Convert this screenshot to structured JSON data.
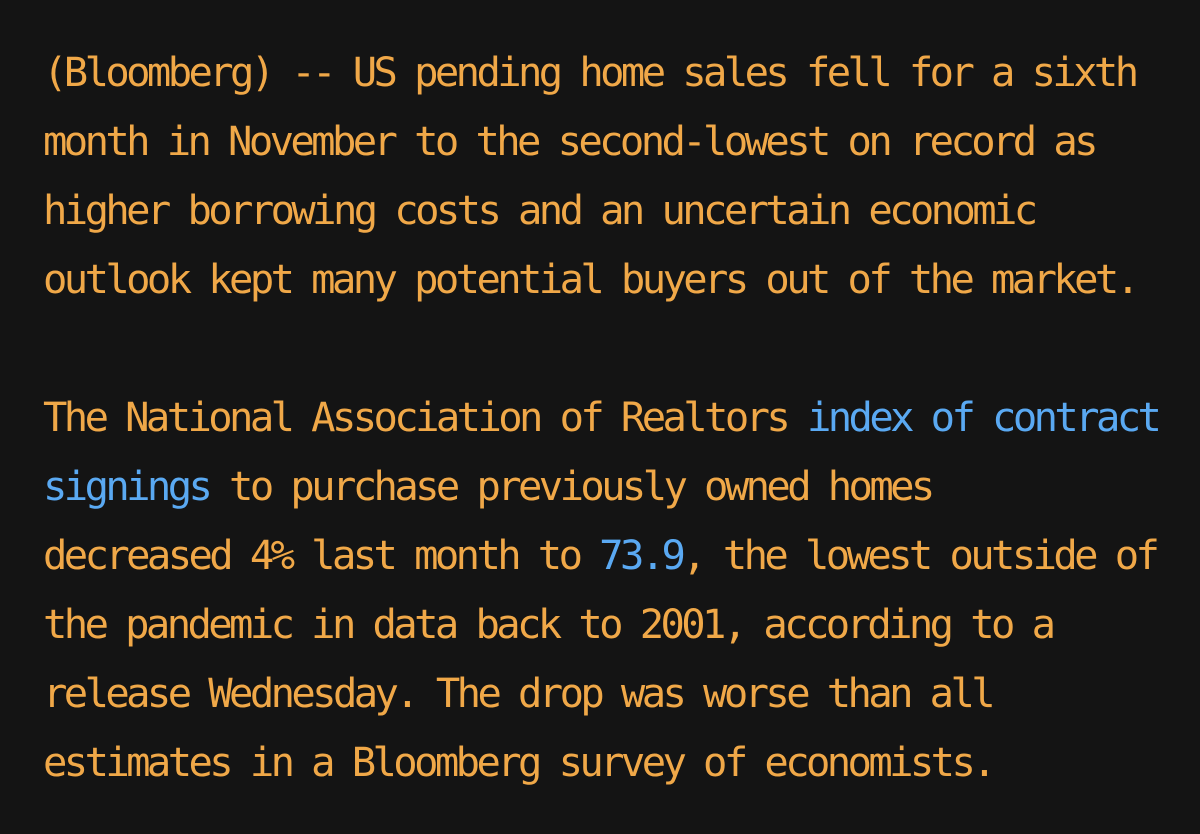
{
  "article": {
    "paragraph1": {
      "lines": [
        "(Bloomberg) -- US pending home sales fell for a sixth",
        "month in November to the second-lowest on record as",
        "higher borrowing costs and an uncertain economic",
        "outlook kept many potential buyers out of the market."
      ]
    },
    "paragraph2": {
      "line1_text": "The National Association of Realtors ",
      "link_index_part1": "index of contract",
      "link_index_part2": "signings",
      "line2_text": " to purchase previously owned homes",
      "line3_text_before": "decreased 4% last month to ",
      "link_value": "73.9",
      "line3_text_after": ", the lowest outside of",
      "line4_text": "the pandemic in data back to 2001, according to a",
      "line5_text": "release Wednesday. The drop was worse than all",
      "line6_text": "estimates in a Bloomberg survey of economists."
    },
    "colors": {
      "background": "#141414",
      "text": "#f0a848",
      "link": "#5aa9f2"
    }
  }
}
